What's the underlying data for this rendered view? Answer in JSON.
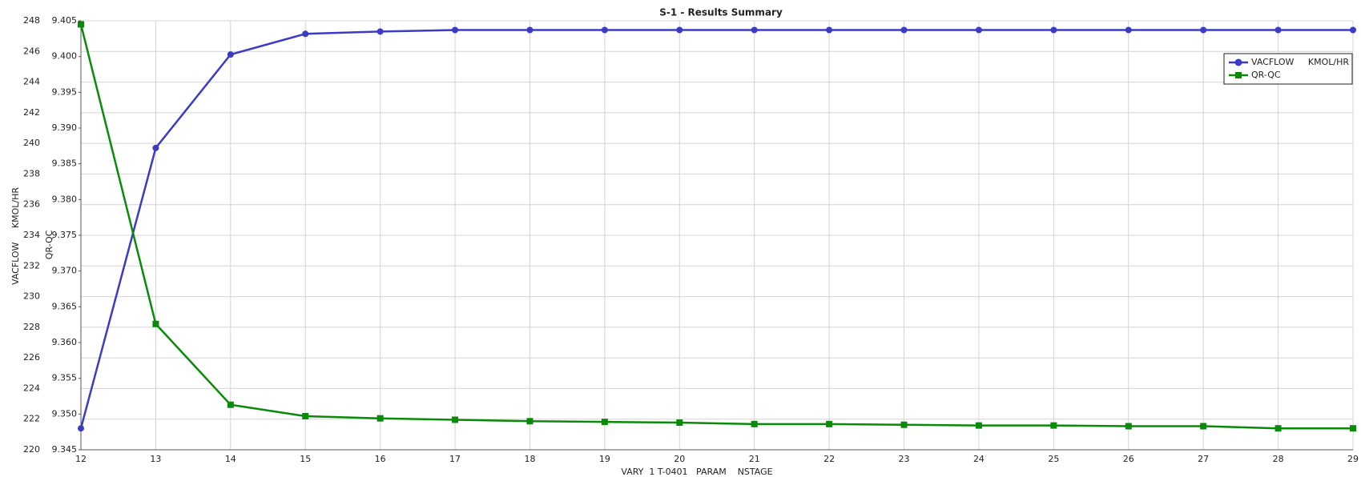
{
  "chart_data": {
    "type": "line",
    "title": "S-1 - Results Summary",
    "xlabel": "VARY  1 T-0401   PARAM    NSTAGE",
    "ylabel": "VACFLOW     KMOL/HR",
    "y2label": "QR-QC",
    "x": [
      12,
      13,
      14,
      15,
      16,
      17,
      18,
      19,
      20,
      21,
      22,
      23,
      24,
      25,
      26,
      27,
      28,
      29
    ],
    "series": [
      {
        "name": "VACFLOW     KMOL/HR",
        "color": "#3b3bc4",
        "marker": "circle",
        "values": [
          221.4,
          239.7,
          245.8,
          247.15,
          247.3,
          247.4,
          247.4,
          247.4,
          247.4,
          247.4,
          247.4,
          247.4,
          247.4,
          247.4,
          247.4,
          247.4,
          247.4,
          247.4
        ]
      },
      {
        "name": "QR-QC",
        "color": "#0a8a0a",
        "marker": "square",
        "axis": "y2",
        "values": [
          9.4045,
          9.3626,
          9.3513,
          9.3497,
          9.3494,
          9.3492,
          9.349,
          9.3489,
          9.3488,
          9.3486,
          9.3486,
          9.3485,
          9.3484,
          9.3484,
          9.3483,
          9.3483,
          9.348,
          9.348
        ]
      }
    ],
    "xlim": [
      12,
      29
    ],
    "xticks": [
      12,
      13,
      14,
      15,
      16,
      17,
      18,
      19,
      20,
      21,
      22,
      23,
      24,
      25,
      26,
      27,
      28,
      29
    ],
    "ylim": [
      220,
      248
    ],
    "yticks": [
      220,
      222,
      224,
      226,
      228,
      230,
      232,
      234,
      236,
      238,
      240,
      242,
      244,
      246,
      248
    ],
    "y2lim": [
      9.345,
      9.405
    ],
    "y2ticks": [
      9.345,
      {
        "value": 9.35,
        "label": "9.350"
      },
      9.355,
      {
        "value": 9.36,
        "label": "9.360"
      },
      9.365,
      {
        "value": 9.37,
        "label": "9.370"
      },
      9.375,
      {
        "value": 9.38,
        "label": "9.380"
      },
      9.385,
      {
        "value": 9.39,
        "label": "9.390"
      },
      9.395,
      {
        "value": 9.4,
        "label": "9.400"
      },
      9.405
    ],
    "grid": true,
    "legend": "upper right"
  }
}
